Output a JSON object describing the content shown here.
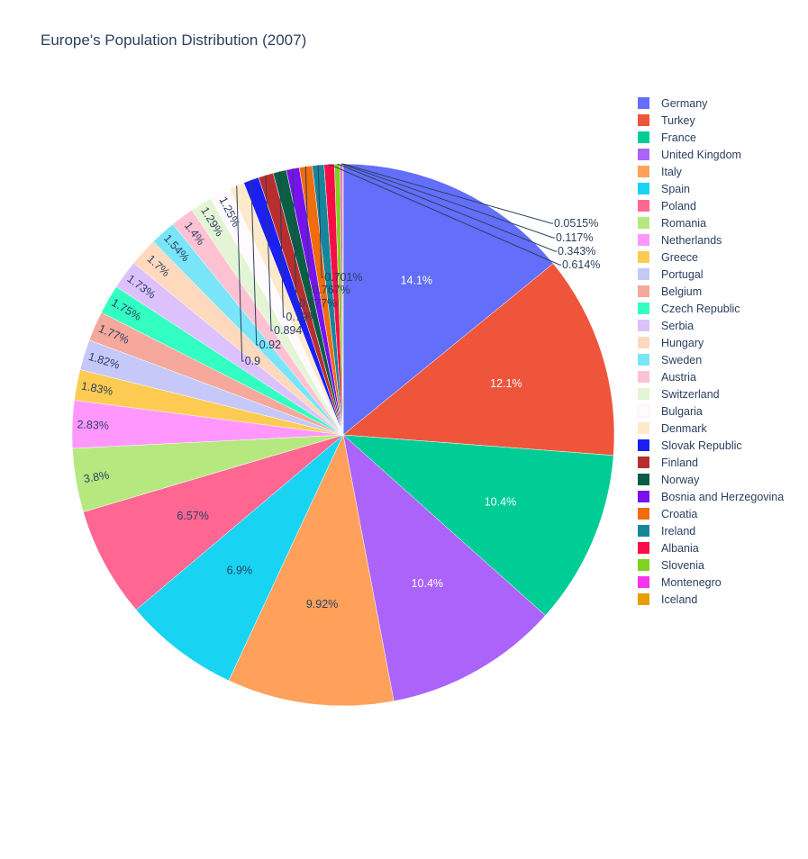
{
  "chart_data": {
    "type": "pie",
    "title": "Europe's Population Distribution (2007)",
    "slices": [
      {
        "label": "Germany",
        "percent": 14.1,
        "text": "14.1%",
        "color": "#636efa"
      },
      {
        "label": "Turkey",
        "percent": 12.1,
        "text": "12.1%",
        "color": "#ef553b"
      },
      {
        "label": "France",
        "percent": 10.4,
        "text": "10.4%",
        "color": "#00cc96"
      },
      {
        "label": "United Kingdom",
        "percent": 10.4,
        "text": "10.4%",
        "color": "#ab63fa"
      },
      {
        "label": "Italy",
        "percent": 9.92,
        "text": "9.92%",
        "color": "#ffa15a"
      },
      {
        "label": "Spain",
        "percent": 6.9,
        "text": "6.9%",
        "color": "#19d3f3"
      },
      {
        "label": "Poland",
        "percent": 6.57,
        "text": "6.57%",
        "color": "#ff6692"
      },
      {
        "label": "Romania",
        "percent": 3.8,
        "text": "3.8%",
        "color": "#b6e880"
      },
      {
        "label": "Netherlands",
        "percent": 2.83,
        "text": "2.83%",
        "color": "#ff97ff"
      },
      {
        "label": "Greece",
        "percent": 1.83,
        "text": "1.83%",
        "color": "#fecb52"
      },
      {
        "label": "Portugal",
        "percent": 1.82,
        "text": "1.82%",
        "color": "#c6c8f9"
      },
      {
        "label": "Belgium",
        "percent": 1.77,
        "text": "1.77%",
        "color": "#f5a89b"
      },
      {
        "label": "Czech Republic",
        "percent": 1.75,
        "text": "1.75%",
        "color": "#33ffc2"
      },
      {
        "label": "Serbia",
        "percent": 1.73,
        "text": "1.73%",
        "color": "#ddc1fc"
      },
      {
        "label": "Hungary",
        "percent": 1.7,
        "text": "1.7%",
        "color": "#ffd9bd"
      },
      {
        "label": "Sweden",
        "percent": 1.54,
        "text": "1.54%",
        "color": "#7ae5f8"
      },
      {
        "label": "Austria",
        "percent": 1.4,
        "text": "1.4%",
        "color": "#ffc2d3"
      },
      {
        "label": "Switzerland",
        "percent": 1.29,
        "text": "1.29%",
        "color": "#e4f5d6"
      },
      {
        "label": "Bulgaria",
        "percent": 1.25,
        "text": "1.25%",
        "color": "#fffaff"
      },
      {
        "label": "Denmark",
        "percent": 0.9,
        "text": "0.9",
        "color": "#fdeacb"
      },
      {
        "label": "Slovak Republic",
        "percent": 0.92,
        "text": "0.92",
        "color": "#1b1ff3"
      },
      {
        "label": "Finland",
        "percent": 0.894,
        "text": "0.894",
        "color": "#b82e2e"
      },
      {
        "label": "Norway",
        "percent": 0.79,
        "text": "0.79%",
        "color": "#0a5e43"
      },
      {
        "label": "Bosnia and Herzegovina",
        "percent": 0.777,
        "text": "0.777%",
        "color": "#7712ef"
      },
      {
        "label": "Croatia",
        "percent": 0.767,
        "text": "0.767%",
        "color": "#f26b0c"
      },
      {
        "label": "Ireland",
        "percent": 0.701,
        "text": "0.701%",
        "color": "#16879b"
      },
      {
        "label": "Albania",
        "percent": 0.614,
        "text": "0.614%",
        "color": "#f80d48"
      },
      {
        "label": "Slovenia",
        "percent": 0.343,
        "text": "0.343%",
        "color": "#7ed321"
      },
      {
        "label": "Montenegro",
        "percent": 0.117,
        "text": "0.117%",
        "color": "#f734eb"
      },
      {
        "label": "Iceland",
        "percent": 0.0515,
        "text": "0.0515%",
        "color": "#e59f00"
      }
    ]
  }
}
